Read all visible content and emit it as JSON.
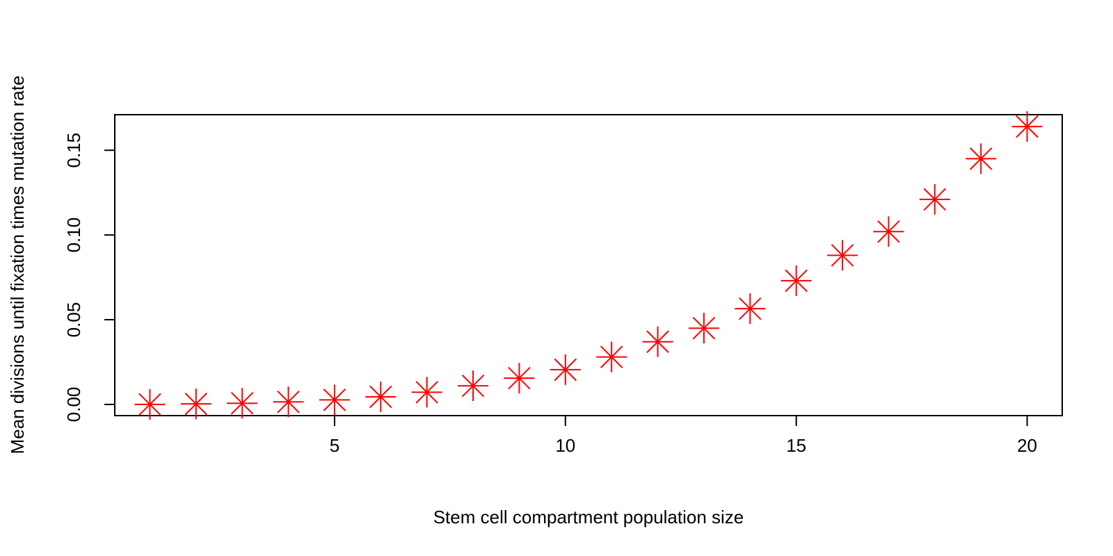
{
  "chart_data": {
    "type": "scatter",
    "title": "",
    "xlabel": "Stem cell compartment population size",
    "ylabel": "Mean divisions until fixation times mutation rate",
    "xlim": [
      0.24,
      20.76
    ],
    "ylim": [
      -0.0066,
      0.171
    ],
    "x_ticks": [
      5,
      10,
      15,
      20
    ],
    "x_tick_labels": [
      "5",
      "10",
      "15",
      "20"
    ],
    "y_ticks": [
      0.0,
      0.05,
      0.1,
      0.15
    ],
    "y_tick_labels": [
      "0.00",
      "0.05",
      "0.10",
      "0.15"
    ],
    "grid": false,
    "marker": "asterisk",
    "series": [
      {
        "color": "#ff0000",
        "x": [
          1,
          2,
          3,
          4,
          5,
          6,
          7,
          8,
          9,
          10,
          11,
          12,
          13,
          14,
          15,
          16,
          17,
          18,
          19,
          20
        ],
        "y": [
          0.0,
          0.0003,
          0.0007,
          0.0015,
          0.0027,
          0.0045,
          0.0072,
          0.011,
          0.0155,
          0.0205,
          0.028,
          0.037,
          0.045,
          0.0565,
          0.073,
          0.088,
          0.102,
          0.121,
          0.145,
          0.164
        ]
      }
    ]
  }
}
